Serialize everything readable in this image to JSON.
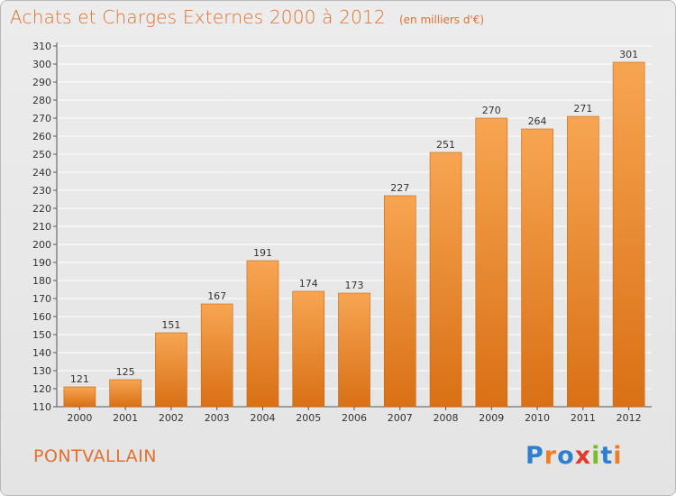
{
  "header": {
    "title": "Achats et Charges Externes 2000 à 2012",
    "unit": "(en milliers d'€)"
  },
  "commune": "PONTVALLAIN",
  "logo": {
    "text": "Proxiti",
    "letters": [
      {
        "ch": "P",
        "color": "#2f7fd0"
      },
      {
        "ch": "r",
        "color": "#ef7d22"
      },
      {
        "ch": "o",
        "color": "#2f7fd0"
      },
      {
        "ch": "x",
        "color": "#e23b2e"
      },
      {
        "ch": "i",
        "color": "#7cbc2a"
      },
      {
        "ch": "t",
        "color": "#2f7fd0"
      },
      {
        "ch": "i",
        "color": "#ef7d22"
      }
    ]
  },
  "colors": {
    "bar_light": "#f7a552",
    "bar_dark": "#d97015",
    "bar_edge": "#c9640f",
    "title": "#e2702f",
    "grid": "#ffffff"
  },
  "chart_data": {
    "type": "bar",
    "title": "Achats et Charges Externes 2000 à 2012",
    "categories": [
      "2000",
      "2001",
      "2002",
      "2003",
      "2004",
      "2005",
      "2006",
      "2007",
      "2008",
      "2009",
      "2010",
      "2011",
      "2012"
    ],
    "values": [
      121,
      125,
      151,
      167,
      191,
      174,
      173,
      227,
      251,
      270,
      264,
      271,
      301
    ],
    "ylim": [
      110,
      310
    ],
    "ytick_step": 10,
    "grid": true,
    "data_labels": true
  }
}
